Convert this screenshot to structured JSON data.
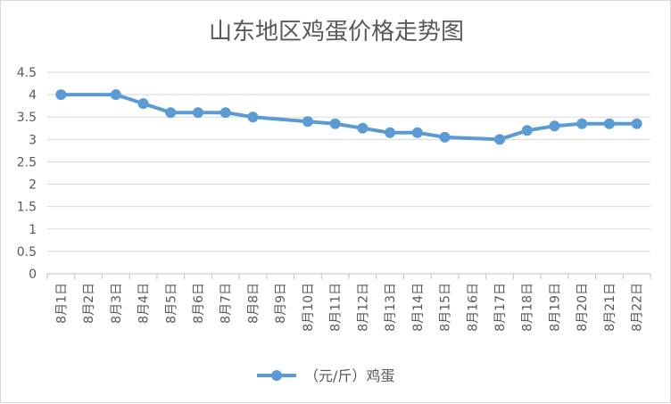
{
  "chart_data": {
    "type": "line",
    "title": "山东地区鸡蛋价格走势图",
    "xlabel": "",
    "ylabel": "",
    "ylim": [
      0,
      4.5
    ],
    "yticks": [
      "0",
      "0.5",
      "1",
      "1.5",
      "2",
      "2.5",
      "3",
      "3.5",
      "4",
      "4.5"
    ],
    "grid": true,
    "legend_position": "bottom",
    "categories": [
      "8月1日",
      "8月2日",
      "8月3日",
      "8月4日",
      "8月5日",
      "8月6日",
      "8月7日",
      "8月8日",
      "8月9日",
      "8月10日",
      "8月11日",
      "8月12日",
      "8月13日",
      "8月14日",
      "8月15日",
      "8月16日",
      "8月17日",
      "8月18日",
      "8月19日",
      "8月20日",
      "8月21日",
      "8月22日"
    ],
    "series": [
      {
        "name": "（元/斤）鸡蛋",
        "color": "#5b9bd5",
        "values": [
          4.0,
          null,
          4.0,
          3.8,
          3.6,
          3.6,
          3.6,
          3.5,
          null,
          3.4,
          3.35,
          3.25,
          3.15,
          3.15,
          3.05,
          null,
          3.0,
          3.2,
          3.3,
          3.35,
          3.35,
          3.35
        ]
      }
    ]
  }
}
